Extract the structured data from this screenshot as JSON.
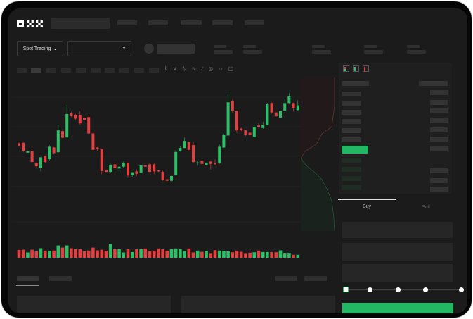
{
  "header": {
    "logo": "OKX"
  },
  "toolbar": {
    "mode_label": "Spot Trading",
    "mode_icon": "chevron-down-icon",
    "pair_icon": "chevron-down-icon"
  },
  "chart_icons": [
    "line-style-icon",
    "indicator-icon",
    "fx-icon",
    "trend-line-icon",
    "brush-icon",
    "magnet-icon",
    "eye-icon",
    "screenshot-icon"
  ],
  "orderbook": {
    "view_icons": [
      "both-sides-icon",
      "bids-only-icon",
      "asks-only-icon"
    ]
  },
  "trade": {
    "tabs": [
      {
        "label": "Buy",
        "active": true
      },
      {
        "label": "Sell",
        "active": false
      }
    ],
    "slider_value": 0
  },
  "colors": {
    "up": "#2bbf66",
    "down": "#e0403f",
    "background": "#1b1b1b",
    "accent_button": "#22b863"
  },
  "chart_data": {
    "type": "candlestick",
    "candles": [
      [
        50,
        51,
        47,
        47.5
      ],
      [
        50.5,
        51,
        41,
        41.8
      ],
      [
        40,
        42,
        40,
        41.5
      ],
      [
        41.3,
        46,
        29,
        30
      ],
      [
        28.8,
        29.5,
        24.5,
        25.5
      ],
      [
        23.8,
        35.5,
        20,
        35
      ],
      [
        36.3,
        37,
        29,
        30
      ],
      [
        33,
        48,
        32,
        46.3
      ],
      [
        45.5,
        46,
        38.5,
        39.5
      ],
      [
        40.5,
        70,
        40,
        63.8
      ],
      [
        63,
        65,
        55.5,
        56
      ],
      [
        56.3,
        91,
        56,
        81.3
      ],
      [
        82.5,
        83.5,
        78,
        78.8
      ],
      [
        80.5,
        81.5,
        75,
        76.3
      ],
      [
        80,
        84,
        70,
        71.3
      ],
      [
        77,
        77.5,
        74.5,
        75
      ],
      [
        78,
        80,
        60,
        60.5
      ],
      [
        60.5,
        61,
        42,
        43
      ],
      [
        45.5,
        46,
        42,
        43.8
      ],
      [
        43.8,
        44,
        17,
        20.5
      ],
      [
        21,
        22,
        19,
        19.5
      ],
      [
        19.5,
        28,
        18,
        27
      ],
      [
        27.5,
        29,
        22,
        23.5
      ],
      [
        23,
        25.5,
        20,
        25
      ],
      [
        25,
        30.5,
        24,
        28.8
      ],
      [
        28.8,
        29,
        13,
        15.5
      ],
      [
        16,
        19.5,
        14.5,
        19
      ],
      [
        20,
        22,
        15,
        17.5
      ],
      [
        18.5,
        28,
        18,
        26.3
      ],
      [
        26.5,
        27,
        24.5,
        25
      ],
      [
        27.5,
        28.5,
        19,
        19.5
      ],
      [
        27.5,
        28.5,
        17,
        20
      ],
      [
        21,
        21.5,
        19.5,
        20
      ],
      [
        19.5,
        21,
        10,
        10.5
      ],
      [
        11.5,
        12.5,
        9.5,
        10
      ],
      [
        10,
        16,
        9,
        15
      ],
      [
        16.3,
        44,
        15,
        40.8
      ],
      [
        41.5,
        46.5,
        41,
        45
      ],
      [
        45,
        56,
        45,
        52.5
      ],
      [
        51.3,
        52,
        42.5,
        43
      ],
      [
        48,
        51,
        29,
        30
      ],
      [
        28.8,
        31,
        26,
        29.5
      ],
      [
        31.3,
        31.5,
        27.5,
        28
      ],
      [
        26.8,
        29.5,
        26.5,
        29.3
      ],
      [
        30.5,
        31,
        22,
        28
      ],
      [
        28.5,
        33,
        27,
        27.5
      ],
      [
        28.8,
        48.5,
        28,
        46.3
      ],
      [
        45.5,
        60,
        45,
        58.8
      ],
      [
        58.3,
        105,
        57.5,
        93.8
      ],
      [
        95,
        96.5,
        83,
        85
      ],
      [
        84.5,
        85,
        61,
        63.8
      ],
      [
        65.8,
        66.5,
        63,
        63.8
      ],
      [
        63.8,
        64,
        58,
        59
      ],
      [
        61.3,
        62,
        58.5,
        58.8
      ],
      [
        56.5,
        70,
        56,
        67.5
      ],
      [
        69,
        72,
        66.5,
        67.5
      ],
      [
        66.3,
        73,
        65.5,
        69.5
      ],
      [
        69.5,
        93,
        69,
        91.8
      ],
      [
        93,
        93.5,
        81.5,
        83
      ],
      [
        83,
        83.5,
        78.5,
        78.8
      ],
      [
        77.5,
        85,
        77,
        84.5
      ],
      [
        85,
        97,
        84.5,
        93
      ],
      [
        93,
        103.5,
        92.5,
        100
      ],
      [
        93,
        93.5,
        84,
        87.5
      ],
      [
        85.5,
        96,
        85,
        90.5
      ]
    ],
    "volume": [
      37,
      38,
      25,
      38,
      30,
      45,
      34,
      33,
      34,
      58,
      48,
      58,
      45,
      40,
      40,
      30,
      34,
      48,
      35,
      38,
      33,
      65,
      40,
      40,
      25,
      40,
      27,
      40,
      40,
      44,
      30,
      34,
      44,
      40,
      33,
      40,
      44,
      40,
      32,
      44,
      25,
      34,
      28,
      32,
      22,
      36,
      34,
      32,
      30,
      26,
      34,
      28,
      22,
      24,
      26,
      34,
      27,
      27,
      27,
      26,
      35,
      23,
      23,
      14,
      14
    ]
  }
}
